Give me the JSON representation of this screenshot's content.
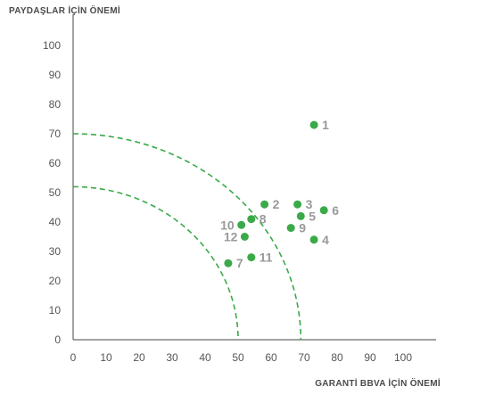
{
  "chart_data": {
    "type": "scatter",
    "ylabel": "PAYDAŞLAR İÇİN ÖNEMİ",
    "xlabel": "GARANTİ BBVA İÇİN ÖNEMİ",
    "xlim": [
      0,
      110
    ],
    "ylim": [
      0,
      110
    ],
    "x_ticks": [
      "0",
      "10",
      "20",
      "30",
      "40",
      "50",
      "60",
      "70",
      "80",
      "90",
      "100"
    ],
    "y_ticks": [
      "0",
      "10",
      "20",
      "30",
      "40",
      "50",
      "60",
      "70",
      "80",
      "90",
      "100"
    ],
    "grid": false,
    "point_color": "#3aaa48",
    "label_color": "#9a9a9a",
    "threshold_arcs": [
      {
        "radius_x": 69,
        "radius_y": 70
      },
      {
        "radius_x": 50,
        "radius_y": 52
      }
    ],
    "points": [
      {
        "label": "1",
        "x": 73,
        "y": 73
      },
      {
        "label": "2",
        "x": 58,
        "y": 46
      },
      {
        "label": "3",
        "x": 68,
        "y": 46
      },
      {
        "label": "4",
        "x": 73,
        "y": 34
      },
      {
        "label": "5",
        "x": 69,
        "y": 42
      },
      {
        "label": "6",
        "x": 76,
        "y": 44
      },
      {
        "label": "7",
        "x": 47,
        "y": 26
      },
      {
        "label": "8",
        "x": 54,
        "y": 41
      },
      {
        "label": "9",
        "x": 66,
        "y": 38
      },
      {
        "label": "10",
        "x": 51,
        "y": 39
      },
      {
        "label": "11",
        "x": 54,
        "y": 28
      },
      {
        "label": "12",
        "x": 52,
        "y": 35
      }
    ]
  }
}
